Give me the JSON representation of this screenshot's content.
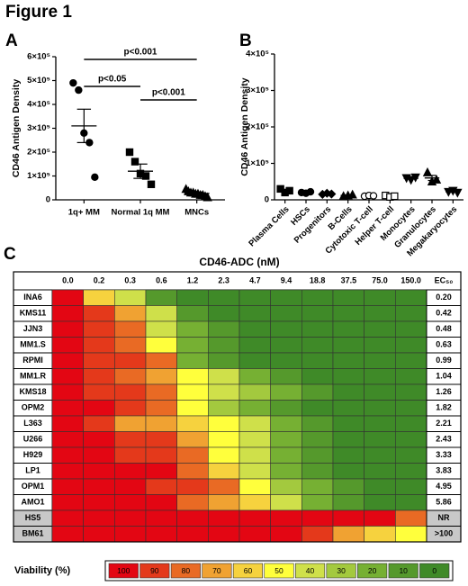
{
  "figure_title": "Figure 1",
  "chart_data": [
    {
      "type": "dotplot",
      "label": "A",
      "ylabel": "CD46 Antigen Density",
      "categories": [
        "1q+ MM",
        "Normal 1q MM",
        "MNCs"
      ],
      "markers": [
        "circle",
        "square",
        "triangle"
      ],
      "color": "#000000",
      "values": [
        [
          490000,
          460000,
          280000,
          240000,
          95000
        ],
        [
          200000,
          160000,
          110000,
          100000,
          65000
        ],
        [
          45000,
          35000,
          30000,
          30000,
          25000,
          25000,
          20000,
          20000,
          15000,
          10000
        ]
      ],
      "means": [
        310000,
        120000,
        27000
      ],
      "errors": [
        70000,
        30000,
        5000
      ],
      "ylim": [
        0,
        600000
      ],
      "yticks": [
        0,
        {
          "value": 100000,
          "label": "1×10⁵"
        },
        {
          "value": 200000,
          "label": "2×10⁵"
        },
        {
          "value": 300000,
          "label": "3×10⁵"
        },
        {
          "value": 400000,
          "label": "4×10⁵"
        },
        {
          "value": 500000,
          "label": "5×10⁵"
        },
        {
          "value": 600000,
          "label": "6×10⁵"
        }
      ],
      "annotations": [
        "p<0.001",
        "p<0.05",
        "p<0.001"
      ]
    },
    {
      "type": "dotplot",
      "label": "B",
      "ylabel": "CD46 Antigen Density",
      "categories": [
        "Plasma Cells",
        "HSCs",
        "Progenitors",
        "B-Cells",
        "Cytotoxic T-cell",
        "Helper T-cell",
        "Monocytes",
        "Granulocytes",
        "Megakaryocytes"
      ],
      "markers": [
        "square",
        "circle",
        "diamond",
        "triangle",
        "circle-open",
        "square-open",
        "triangle-down",
        "triangle",
        "triangle-down"
      ],
      "color": "#000000",
      "label_rotation": -45,
      "values": [
        [
          30000,
          20000,
          25000
        ],
        [
          20000,
          18000,
          22000
        ],
        [
          15000,
          18000,
          16000
        ],
        [
          10000,
          12000,
          14000
        ],
        [
          10000,
          12000,
          11000
        ],
        [
          12000,
          8000,
          10000
        ],
        [
          60000,
          55000,
          62000
        ],
        [
          75000,
          50000,
          55000
        ],
        [
          22000,
          25000,
          20000
        ]
      ],
      "means": [
        25000,
        20000,
        16000,
        12000,
        11000,
        10000,
        59000,
        60000,
        22000
      ],
      "errors": [
        3000,
        1500,
        1000,
        1200,
        600,
        1200,
        2000,
        7000,
        1500
      ],
      "ylim": [
        0,
        400000
      ],
      "yticks": [
        0,
        {
          "value": 100000,
          "label": "1×10⁵"
        },
        {
          "value": 200000,
          "label": "2×10⁵"
        },
        {
          "value": 300000,
          "label": "3×10⁵"
        },
        {
          "value": 400000,
          "label": "4×10⁵"
        }
      ]
    },
    {
      "type": "heatmap",
      "label": "C",
      "title": "CD46-ADC (nM)",
      "x": [
        "0.0",
        "0.2",
        "0.3",
        "0.6",
        "1.2",
        "2.3",
        "4.7",
        "9.4",
        "18.8",
        "37.5",
        "75.0",
        "150.0"
      ],
      "rows": [
        "INA6",
        "KMS11",
        "JJN3",
        "MM1.S",
        "RPMI",
        "MM1.R",
        "KMS18",
        "OPM2",
        "L363",
        "U266",
        "H929",
        "LP1",
        "OPM1",
        "AMO1",
        "HS5",
        "BM61"
      ],
      "values": [
        [
          100,
          60,
          40,
          10,
          0,
          0,
          0,
          0,
          0,
          0,
          0,
          0
        ],
        [
          100,
          90,
          70,
          40,
          10,
          0,
          0,
          0,
          0,
          0,
          0,
          0
        ],
        [
          100,
          90,
          80,
          40,
          20,
          10,
          0,
          0,
          0,
          0,
          0,
          0
        ],
        [
          100,
          90,
          80,
          50,
          20,
          10,
          0,
          0,
          0,
          0,
          0,
          0
        ],
        [
          100,
          90,
          90,
          80,
          20,
          10,
          0,
          0,
          0,
          0,
          0,
          0
        ],
        [
          100,
          90,
          80,
          70,
          50,
          40,
          20,
          10,
          0,
          0,
          0,
          0
        ],
        [
          100,
          90,
          90,
          80,
          50,
          40,
          30,
          20,
          10,
          0,
          0,
          0
        ],
        [
          100,
          100,
          90,
          80,
          50,
          30,
          20,
          10,
          0,
          0,
          0,
          0
        ],
        [
          100,
          90,
          70,
          70,
          60,
          50,
          40,
          20,
          10,
          0,
          0,
          0
        ],
        [
          100,
          100,
          90,
          90,
          70,
          50,
          40,
          20,
          10,
          0,
          0,
          0
        ],
        [
          100,
          100,
          90,
          90,
          80,
          50,
          40,
          20,
          10,
          0,
          0,
          0
        ],
        [
          100,
          100,
          100,
          100,
          80,
          60,
          40,
          20,
          10,
          0,
          0,
          0
        ],
        [
          100,
          100,
          100,
          90,
          90,
          80,
          50,
          30,
          20,
          10,
          0,
          0
        ],
        [
          100,
          100,
          100,
          100,
          80,
          70,
          60,
          40,
          20,
          10,
          0,
          0
        ],
        [
          100,
          100,
          100,
          100,
          100,
          100,
          100,
          100,
          100,
          100,
          100,
          80
        ],
        [
          100,
          100,
          100,
          100,
          100,
          100,
          100,
          100,
          90,
          70,
          60,
          50
        ]
      ],
      "ec50_header": "EC₅₀",
      "ec50": [
        "0.20",
        "0.42",
        "0.48",
        "0.63",
        "0.99",
        "1.04",
        "1.26",
        "1.82",
        "2.21",
        "2.43",
        "3.33",
        "3.83",
        "4.95",
        "5.86",
        "NR",
        ">100"
      ],
      "legend_title": "Viability (%)",
      "colorscale": [
        {
          "value": 100,
          "color": "#e30613"
        },
        {
          "value": 90,
          "color": "#e4391b"
        },
        {
          "value": 80,
          "color": "#e96a24"
        },
        {
          "value": 70,
          "color": "#f0a232"
        },
        {
          "value": 60,
          "color": "#f6d23e"
        },
        {
          "value": 50,
          "color": "#ffff3c"
        },
        {
          "value": 40,
          "color": "#cfe04a"
        },
        {
          "value": 30,
          "color": "#a3c93e"
        },
        {
          "value": 20,
          "color": "#76b033"
        },
        {
          "value": 10,
          "color": "#55992c"
        },
        {
          "value": 0,
          "color": "#3f8a28"
        }
      ]
    }
  ]
}
